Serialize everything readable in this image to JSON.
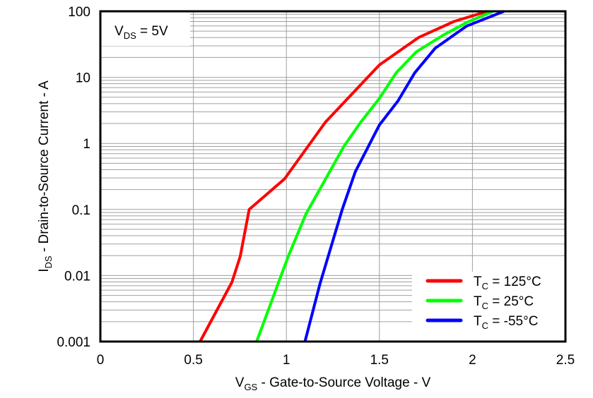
{
  "chart_data": {
    "type": "line",
    "xlabel": {
      "main": "V",
      "sub": "GS",
      "rest": " - Gate-to-Source Voltage - V"
    },
    "ylabel": {
      "main": "I",
      "sub": "DS",
      "rest": " - Drain-to-Source Current - A"
    },
    "xlim": [
      0,
      2.5
    ],
    "ylim": [
      0.001,
      100
    ],
    "yscale": "log",
    "grid": true,
    "x_ticks": [
      "0",
      "0.5",
      "1",
      "1.5",
      "2",
      "2.5"
    ],
    "y_ticks": [
      "0.001",
      "0.01",
      "0.1",
      "1",
      "10",
      "100"
    ],
    "annotation": {
      "main": "V",
      "sub": "DS",
      "rest": " = 5V"
    },
    "legend_position": "bottom-right",
    "series": [
      {
        "name": {
          "main": "T",
          "sub": "C",
          "rest": " = 125°C"
        },
        "color": "#ff0000",
        "x": [
          0.536,
          0.707,
          0.752,
          0.8,
          0.99,
          1.21,
          1.5,
          1.71,
          1.9,
          2.08
        ],
        "y": [
          0.001,
          0.0079,
          0.0195,
          0.1,
          0.29,
          2.1,
          15.4,
          40,
          70,
          100
        ]
      },
      {
        "name": {
          "main": "T",
          "sub": "C",
          "rest": " = 25°C"
        },
        "color": "#00ff00",
        "x": [
          0.84,
          1.01,
          1.105,
          1.31,
          1.4,
          1.5,
          1.59,
          1.7,
          1.84,
          1.97,
          2.11
        ],
        "y": [
          0.001,
          0.0195,
          0.085,
          0.91,
          2.1,
          4.8,
          11.7,
          24.5,
          43,
          68,
          100
        ]
      },
      {
        "name": {
          "main": "T",
          "sub": "C",
          "rest": " = -55°C"
        },
        "color": "#0000ff",
        "x": [
          1.1,
          1.18,
          1.3,
          1.37,
          1.5,
          1.6,
          1.69,
          1.8,
          1.97,
          2.17
        ],
        "y": [
          0.001,
          0.0074,
          0.1,
          0.37,
          1.9,
          4.4,
          11.7,
          27.7,
          60,
          100
        ]
      }
    ]
  }
}
